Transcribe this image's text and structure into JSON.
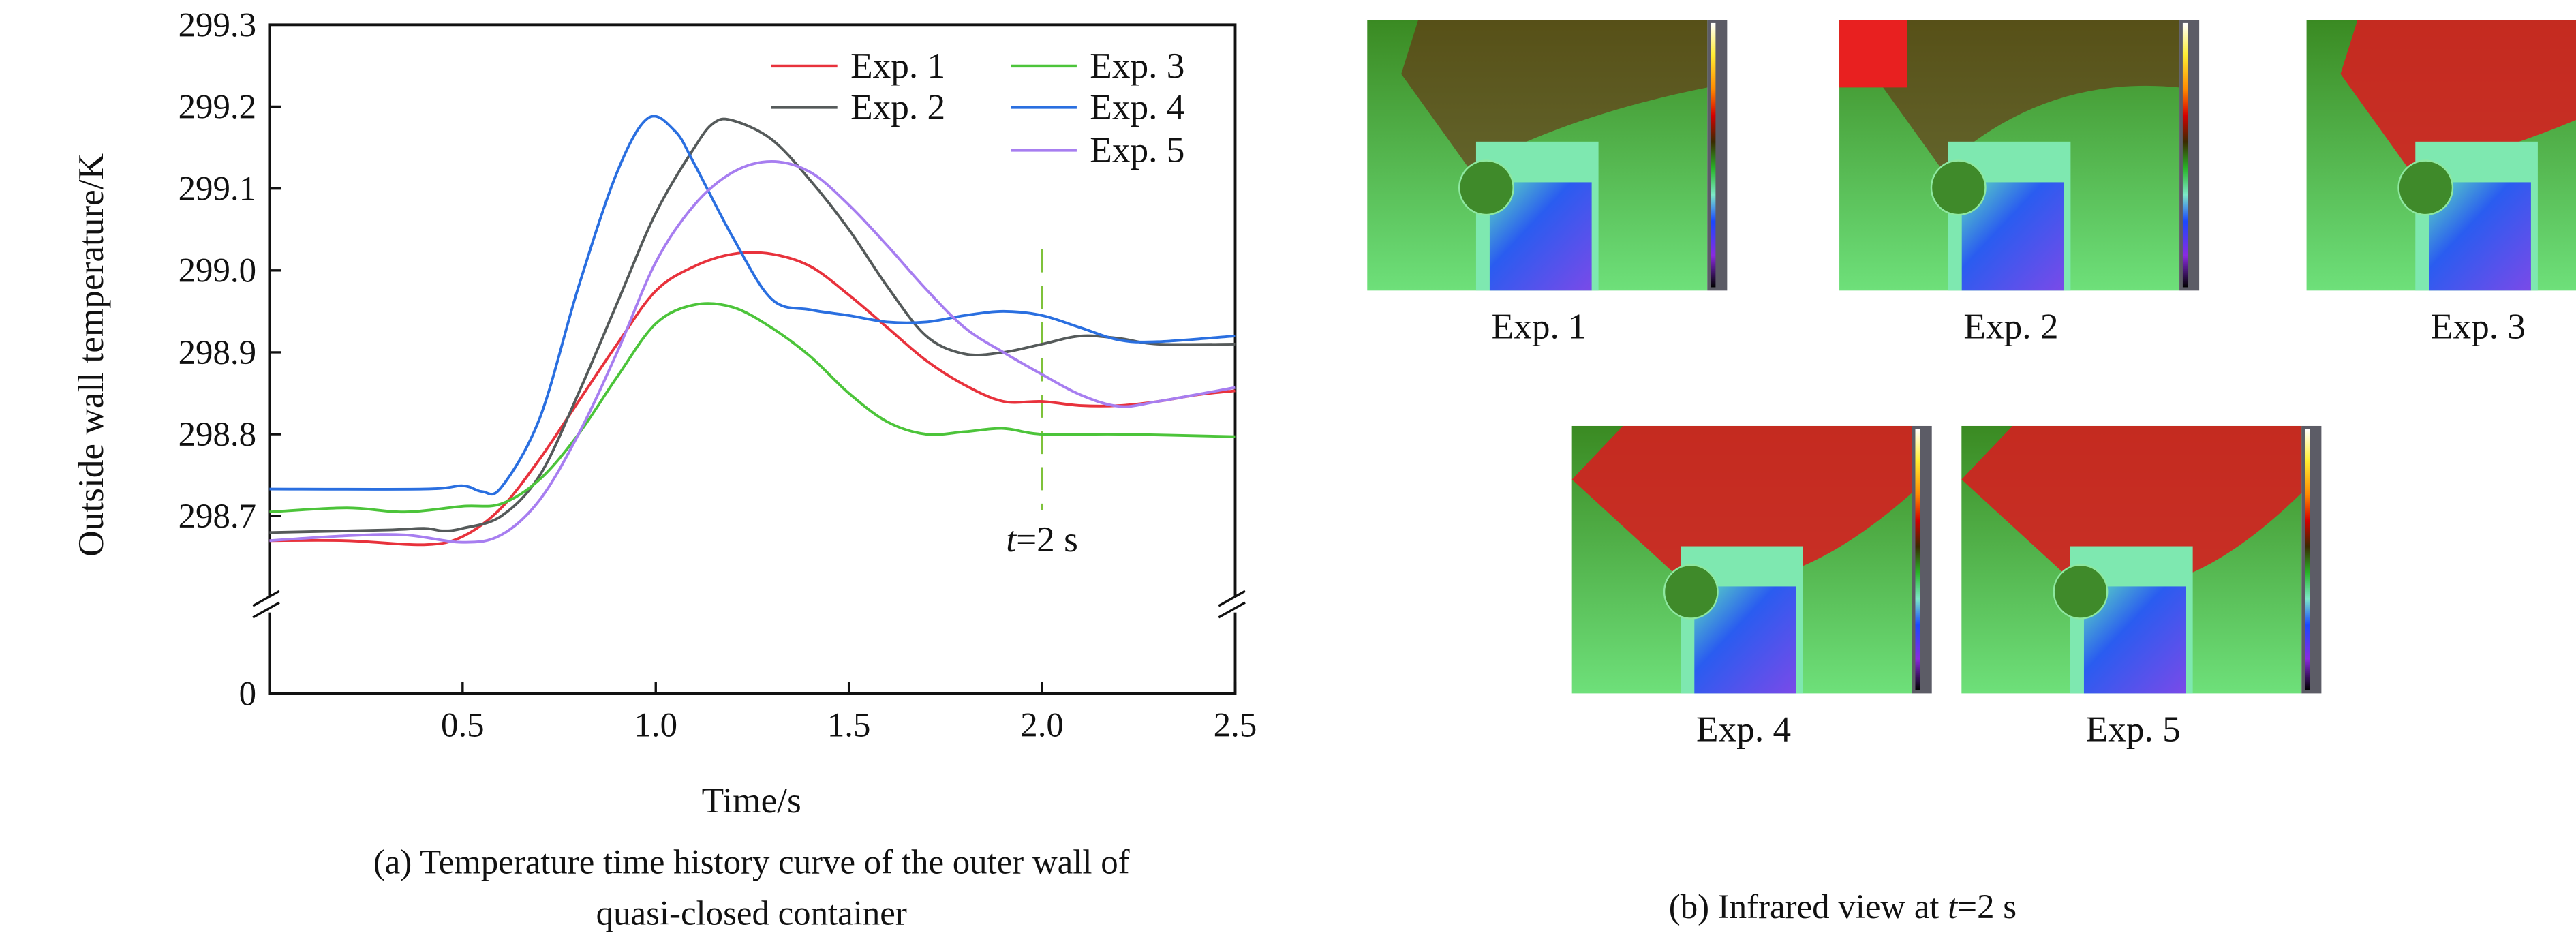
{
  "chart_data": {
    "type": "line",
    "xlabel": "Time/s",
    "ylabel": "Outside wall temperature/K",
    "xlim": [
      0,
      2.5
    ],
    "ylim": [
      298.6,
      299.3
    ],
    "y_axis_break": true,
    "yticks": [
      "0",
      "298.7",
      "298.8",
      "298.9",
      "299.0",
      "299.1",
      "299.2",
      "299.3"
    ],
    "ytick_values": [
      298.7,
      298.8,
      298.9,
      299.0,
      299.1,
      299.2,
      299.3
    ],
    "xticks": [
      "0.5",
      "1.0",
      "1.5",
      "2.0",
      "2.5"
    ],
    "xtick_values": [
      0.5,
      1.0,
      1.5,
      2.0,
      2.5
    ],
    "legend_position": "top-right",
    "annotation": {
      "text_italic": "t",
      "text": "=2 s",
      "x": 2.0
    },
    "caption_line1": "(a) Temperature time history curve of the outer wall of",
    "caption_line2": "quasi-closed container",
    "series": [
      {
        "name": "Exp. 1",
        "color": "#e8323c",
        "x": [
          0,
          0.2,
          0.4,
          0.5,
          0.6,
          0.7,
          0.8,
          0.9,
          1.0,
          1.1,
          1.2,
          1.3,
          1.4,
          1.5,
          1.6,
          1.7,
          1.8,
          1.9,
          2.0,
          2.1,
          2.2,
          2.3,
          2.4,
          2.5
        ],
        "y": [
          298.67,
          298.67,
          298.665,
          298.675,
          298.71,
          298.77,
          298.84,
          298.91,
          298.975,
          299.005,
          299.02,
          299.02,
          299.005,
          298.97,
          298.93,
          298.89,
          298.86,
          298.84,
          298.84,
          298.835,
          298.835,
          298.84,
          298.848,
          298.853
        ]
      },
      {
        "name": "Exp. 2",
        "color": "#555a5a",
        "x": [
          0,
          0.3,
          0.4,
          0.45,
          0.5,
          0.6,
          0.7,
          0.8,
          0.9,
          1.0,
          1.1,
          1.15,
          1.2,
          1.3,
          1.4,
          1.5,
          1.6,
          1.7,
          1.8,
          1.9,
          2.0,
          2.1,
          2.2,
          2.3,
          2.5
        ],
        "y": [
          298.68,
          298.683,
          298.685,
          298.682,
          298.685,
          298.7,
          298.75,
          298.85,
          298.96,
          299.07,
          299.15,
          299.18,
          299.183,
          299.16,
          299.11,
          299.05,
          298.98,
          298.92,
          298.898,
          298.9,
          298.91,
          298.92,
          298.917,
          298.91,
          298.91
        ]
      },
      {
        "name": "Exp. 3",
        "color": "#4cc43a",
        "x": [
          0,
          0.2,
          0.35,
          0.5,
          0.6,
          0.7,
          0.8,
          0.9,
          1.0,
          1.1,
          1.2,
          1.3,
          1.4,
          1.5,
          1.6,
          1.7,
          1.8,
          1.9,
          2.0,
          2.2,
          2.5
        ],
        "y": [
          298.705,
          298.71,
          298.705,
          298.712,
          298.715,
          298.745,
          298.8,
          298.87,
          298.935,
          298.958,
          298.955,
          298.93,
          298.895,
          298.85,
          298.815,
          298.8,
          298.803,
          298.807,
          298.8,
          298.8,
          298.797
        ]
      },
      {
        "name": "Exp. 4",
        "color": "#2a6fe0",
        "x": [
          0,
          0.4,
          0.5,
          0.55,
          0.6,
          0.7,
          0.8,
          0.9,
          0.98,
          1.05,
          1.1,
          1.2,
          1.3,
          1.4,
          1.5,
          1.6,
          1.7,
          1.8,
          1.9,
          2.0,
          2.1,
          2.2,
          2.3,
          2.5
        ],
        "y": [
          298.733,
          298.733,
          298.737,
          298.73,
          298.735,
          298.82,
          298.98,
          299.12,
          299.186,
          299.17,
          299.13,
          299.04,
          298.965,
          298.952,
          298.945,
          298.937,
          298.937,
          298.945,
          298.95,
          298.945,
          298.93,
          298.915,
          298.913,
          298.92
        ]
      },
      {
        "name": "Exp. 5",
        "color": "#a77ef0",
        "x": [
          0,
          0.2,
          0.35,
          0.5,
          0.6,
          0.7,
          0.8,
          0.9,
          1.0,
          1.1,
          1.2,
          1.3,
          1.4,
          1.5,
          1.6,
          1.7,
          1.8,
          1.9,
          2.0,
          2.1,
          2.2,
          2.3,
          2.5
        ],
        "y": [
          298.67,
          298.676,
          298.677,
          298.668,
          298.677,
          298.72,
          298.8,
          298.9,
          299.01,
          299.08,
          299.12,
          299.133,
          299.12,
          299.08,
          299.03,
          298.977,
          298.93,
          298.9,
          298.873,
          298.848,
          298.834,
          298.84,
          298.857
        ]
      }
    ]
  },
  "infrared": {
    "caption_prefix": "(b) Infrared view at ",
    "caption_italic": "t",
    "caption_suffix": "=2 s",
    "panels": [
      {
        "label": "Exp. 1"
      },
      {
        "label": "Exp. 2"
      },
      {
        "label": "Exp. 3"
      },
      {
        "label": "Exp. 4"
      },
      {
        "label": "Exp. 5"
      }
    ]
  }
}
